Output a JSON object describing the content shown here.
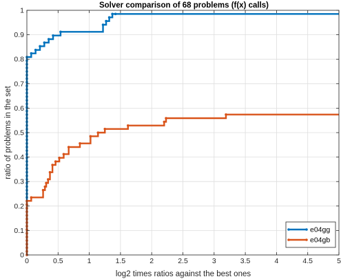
{
  "chart_data": {
    "type": "line",
    "subtype": "step",
    "title": "Solver comparison of 68 problems (f(x) calls)",
    "xlabel": "log2 times ratios against the best ones",
    "ylabel": "ratio of problems in the set",
    "xlim": [
      0,
      5
    ],
    "ylim": [
      0,
      1
    ],
    "xticks": [
      0,
      0.5,
      1,
      1.5,
      2,
      2.5,
      3,
      3.5,
      4,
      4.5,
      5
    ],
    "xtick_labels": [
      "0",
      "0.5",
      "1",
      "1.5",
      "2",
      "2.5",
      "3",
      "3.5",
      "4",
      "4.5",
      "5"
    ],
    "yticks": [
      0,
      0.1,
      0.2,
      0.3,
      0.4,
      0.5,
      0.6,
      0.7,
      0.8,
      0.9,
      1
    ],
    "ytick_labels": [
      "0",
      "0.1",
      "0.2",
      "0.3",
      "0.4",
      "0.5",
      "0.6",
      "0.7",
      "0.8",
      "0.9",
      "1"
    ],
    "grid": true,
    "legend": {
      "position": "bottom-right",
      "entries": [
        "e04gg",
        "e04gb"
      ]
    },
    "series": [
      {
        "name": "e04gg",
        "color": "#0072BD",
        "x": [
          0,
          0.07,
          0.14,
          0.21,
          0.28,
          0.35,
          0.42,
          0.54,
          1.22,
          1.27,
          1.32,
          1.37,
          1.42,
          5
        ],
        "y": [
          0.809,
          0.824,
          0.838,
          0.853,
          0.868,
          0.882,
          0.897,
          0.912,
          0.941,
          0.956,
          0.971,
          0.985,
          0.985,
          0.985
        ]
      },
      {
        "name": "e04gb",
        "color": "#D95319",
        "x": [
          0,
          0.07,
          0.26,
          0.29,
          0.31,
          0.34,
          0.37,
          0.41,
          0.46,
          0.52,
          0.59,
          0.67,
          0.85,
          1.02,
          1.14,
          1.25,
          1.62,
          2.2,
          2.23,
          3.19,
          5
        ],
        "y": [
          0.221,
          0.235,
          0.265,
          0.279,
          0.294,
          0.309,
          0.338,
          0.368,
          0.382,
          0.397,
          0.412,
          0.441,
          0.456,
          0.485,
          0.5,
          0.515,
          0.529,
          0.544,
          0.559,
          0.574,
          0.574
        ]
      }
    ]
  }
}
